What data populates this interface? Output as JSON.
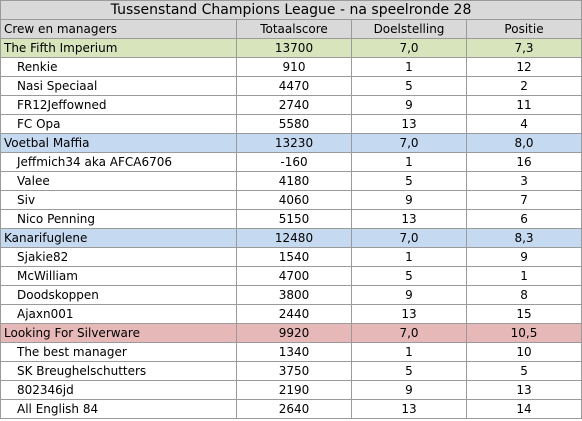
{
  "title": "Tussenstand Champions League - na speelronde 28",
  "headers": {
    "name": "Crew en managers",
    "score": "Totaalscore",
    "goal": "Doelstelling",
    "position": "Positie"
  },
  "colors": {
    "crew_1": "#d8e4bc",
    "crew_2": "#c5d9f1",
    "crew_3": "#c5d9f1",
    "crew_4": "#e6b8b7"
  },
  "crews": [
    {
      "name": "The Fifth Imperium",
      "score": "13700",
      "goal": "7,0",
      "position": "7,3",
      "managers": [
        {
          "name": "Renkie",
          "score": "910",
          "goal": "1",
          "position": "12"
        },
        {
          "name": "Nasi Speciaal",
          "score": "4470",
          "goal": "5",
          "position": "2"
        },
        {
          "name": "FR12Jeffowned",
          "score": "2740",
          "goal": "9",
          "position": "11"
        },
        {
          "name": "FC Opa",
          "score": "5580",
          "goal": "13",
          "position": "4"
        }
      ]
    },
    {
      "name": "Voetbal Maffia",
      "score": "13230",
      "goal": "7,0",
      "position": "8,0",
      "managers": [
        {
          "name": "Jeffmich34 aka AFCA6706",
          "score": "-160",
          "goal": "1",
          "position": "16"
        },
        {
          "name": "Valee",
          "score": "4180",
          "goal": "5",
          "position": "3"
        },
        {
          "name": "Siv",
          "score": "4060",
          "goal": "9",
          "position": "7"
        },
        {
          "name": "Nico Penning",
          "score": "5150",
          "goal": "13",
          "position": "6"
        }
      ]
    },
    {
      "name": "Kanarifuglene",
      "score": "12480",
      "goal": "7,0",
      "position": "8,3",
      "managers": [
        {
          "name": "Sjakie82",
          "score": "1540",
          "goal": "1",
          "position": "9"
        },
        {
          "name": "McWilliam",
          "score": "4700",
          "goal": "5",
          "position": "1"
        },
        {
          "name": "Doodskoppen",
          "score": "3800",
          "goal": "9",
          "position": "8"
        },
        {
          "name": "Ajaxn001",
          "score": "2440",
          "goal": "13",
          "position": "15"
        }
      ]
    },
    {
      "name": "Looking For Silverware",
      "score": "9920",
      "goal": "7,0",
      "position": "10,5",
      "managers": [
        {
          "name": "The best manager",
          "score": "1340",
          "goal": "1",
          "position": "10"
        },
        {
          "name": "SK Breughelschutters",
          "score": "3750",
          "goal": "5",
          "position": "5"
        },
        {
          "name": "802346jd",
          "score": "2190",
          "goal": "9",
          "position": "13"
        },
        {
          "name": "All English 84",
          "score": "2640",
          "goal": "13",
          "position": "14"
        }
      ]
    }
  ]
}
